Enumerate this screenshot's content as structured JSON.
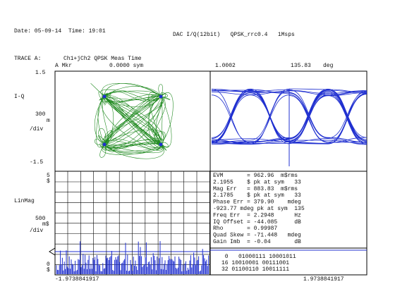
{
  "header": {
    "datetime": "Date: 05-09-14  Time: 19:01",
    "setup": "DAC I/Q(12bit)   QPSK_rrc0.4   1Msps"
  },
  "trace": {
    "label": "TRACE A:",
    "name": "Ch1+jCh2 QPSK Meas Time"
  },
  "marker": {
    "label": "A Mkr",
    "position": "0.0000 sym",
    "magnitude": "1.0002",
    "phase": "135.83",
    "phase_unit": "deg"
  },
  "upper_scale": {
    "top": "1.5",
    "name": "I-Q",
    "per_div": "300",
    "unit": "m",
    "div": "/div",
    "bottom": "-1.5"
  },
  "lower_scale": {
    "top": "5",
    "top_unit": "$",
    "name": "LinMag",
    "per_div": "500",
    "unit": "m$",
    "div": "/div",
    "bottom": "0",
    "bottom_unit": "$"
  },
  "x_axis": {
    "start": "-1.9738841917",
    "end": "1.9738841917"
  },
  "measurements": [
    "EVM       = 962.96  m$rms",
    "2.1955    $ pk at sym   33",
    "Mag Err   = 883.83  m$rms",
    "2.1785    $ pk at sym   33",
    "Phase Err = 379.90    mdeg",
    "-923.77 mdeg pk at sym  135",
    "Freq Err  = 2.2948      Hz",
    "IQ Offset = -44.085     dB",
    "Rho       = 0.99987",
    "Quad Skew = -71.448   mdeg",
    "Gain Imb  = -0.04       dB"
  ],
  "symbols": [
    " 0   01000111 10001011",
    "16 10010001 00111001",
    "32 01100110 10011111"
  ]
}
